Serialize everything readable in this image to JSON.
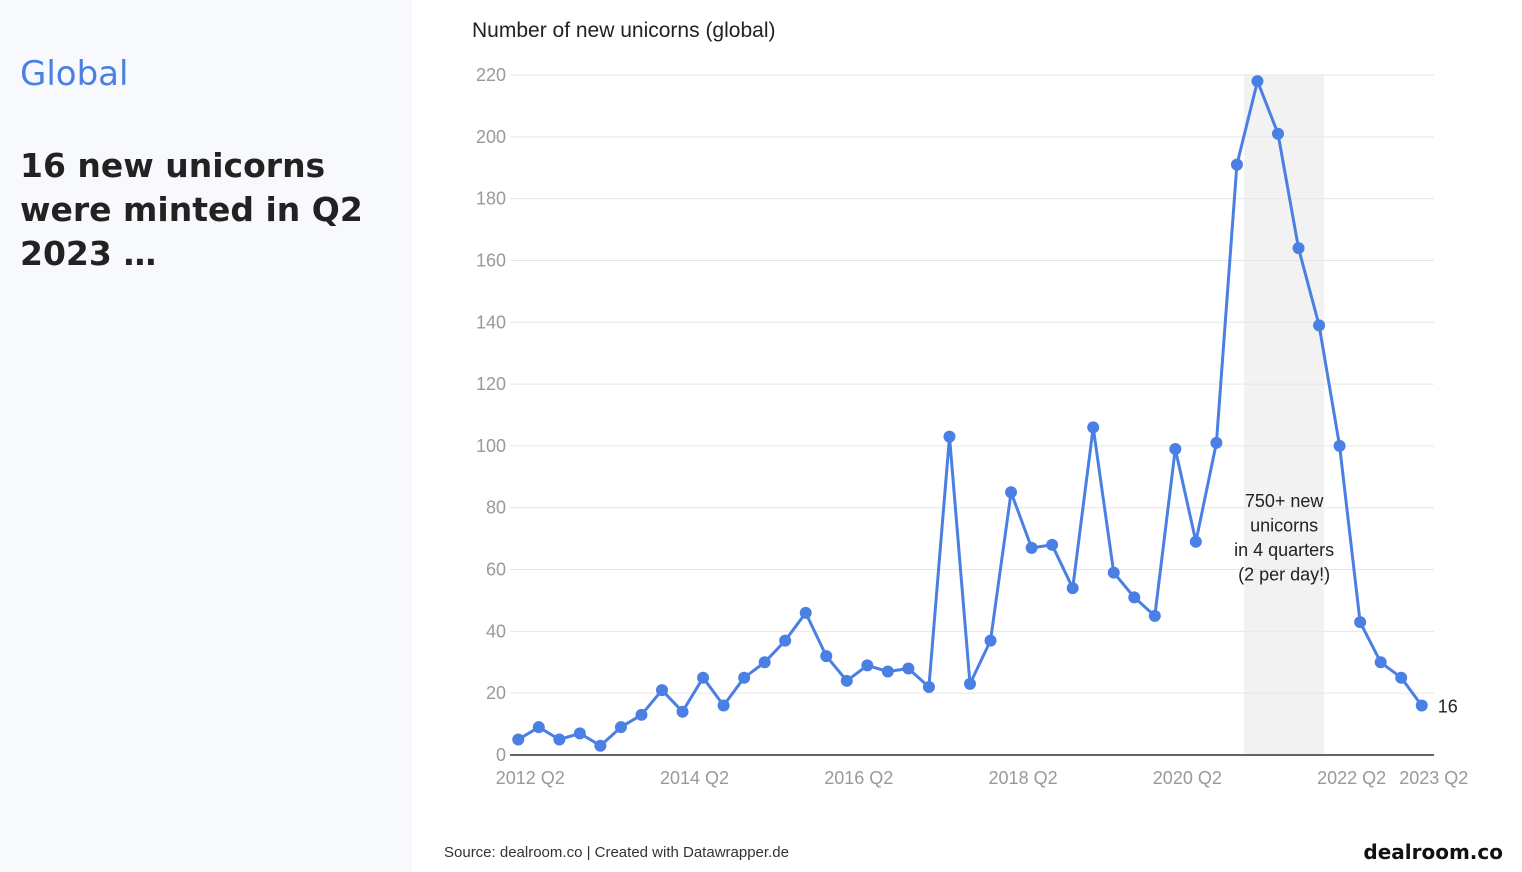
{
  "left": {
    "section_title": "Global",
    "headline": "16 new unicorns were minted in Q2 2023 …"
  },
  "footer": {
    "source": "Source: dealroom.co | Created with Datawrapper.de",
    "brand": "dealroom.co"
  },
  "colors": {
    "line": "#4a7fe3",
    "grid": "#e6e6e6",
    "highlight_band": "#f2f2f2",
    "left_panel_bg": "#f8f9fd"
  },
  "chart_data": {
    "type": "line",
    "title": "Number of new unicorns (global)",
    "xlabel": "",
    "ylabel": "",
    "ylim": [
      0,
      220
    ],
    "y_ticks": [
      0,
      20,
      40,
      60,
      80,
      100,
      120,
      140,
      160,
      180,
      200,
      220
    ],
    "grid": true,
    "x_tick_labels": [
      "2012 Q2",
      "2014 Q2",
      "2016 Q2",
      "2018 Q2",
      "2020 Q2",
      "2022 Q2",
      "2023 Q2"
    ],
    "x_tick_indices": [
      0,
      8,
      16,
      24,
      32,
      40,
      44
    ],
    "x": [
      "2012 Q2",
      "2012 Q3",
      "2012 Q4",
      "2013 Q1",
      "2013 Q2",
      "2013 Q3",
      "2013 Q4",
      "2014 Q1",
      "2014 Q2",
      "2014 Q3",
      "2014 Q4",
      "2015 Q1",
      "2015 Q2",
      "2015 Q3",
      "2015 Q4",
      "2016 Q1",
      "2016 Q2",
      "2016 Q3",
      "2016 Q4",
      "2017 Q1",
      "2017 Q2",
      "2017 Q3",
      "2017 Q4",
      "2018 Q1",
      "2018 Q2",
      "2018 Q3",
      "2018 Q4",
      "2019 Q1",
      "2019 Q2",
      "2019 Q3",
      "2019 Q4",
      "2020 Q1",
      "2020 Q2",
      "2020 Q3",
      "2020 Q4",
      "2021 Q1",
      "2021 Q2",
      "2021 Q3",
      "2021 Q4",
      "2022 Q1",
      "2022 Q2",
      "2022 Q3",
      "2022 Q4",
      "2023 Q1",
      "2023 Q2"
    ],
    "series": [
      {
        "values": [
          5,
          9,
          5,
          7,
          3,
          9,
          13,
          21,
          14,
          25,
          16,
          25,
          30,
          37,
          46,
          32,
          24,
          29,
          27,
          28,
          22,
          103,
          23,
          37,
          85,
          67,
          68,
          54,
          106,
          59,
          51,
          45,
          99,
          69,
          101,
          191,
          218,
          201,
          164,
          139,
          100,
          43,
          30,
          25,
          16
        ]
      }
    ],
    "highlight": {
      "from_index": 35.35,
      "to_index": 39.25,
      "annotation": [
        "750+ new",
        "unicorns",
        "in 4 quarters",
        "(2 per day!)"
      ]
    },
    "end_label": "16"
  }
}
